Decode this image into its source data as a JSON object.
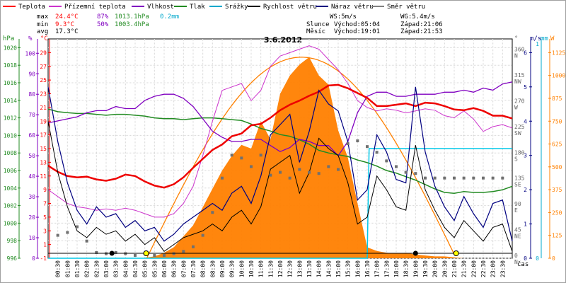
{
  "chart_data": {
    "type": "line",
    "title": "3.6.2012",
    "legend": [
      {
        "name": "Teplota",
        "color": "#ff0000"
      },
      {
        "name": "Přízemní teplota",
        "color": "#cc33cc"
      },
      {
        "name": "Vlhkost",
        "color": "#8000c0"
      },
      {
        "name": "Tlak",
        "color": "#228b22"
      },
      {
        "name": "Srážky",
        "color": "#00a8cc"
      },
      {
        "name": "Rychlost větru",
        "color": "#000000"
      },
      {
        "name": "Náraz větru",
        "color": "#000080"
      },
      {
        "name": "Směr větru",
        "color": "#808080"
      }
    ],
    "stats": {
      "max_label": "max",
      "min_label": "min",
      "avg_label": "avg",
      "max_temp": "24.4°C",
      "max_hum": "87%",
      "max_press": "1013.1hPa",
      "max_rain": "0.2mm",
      "min_temp": "9.3°C",
      "min_hum": "50%",
      "min_press": "1003.4hPa",
      "avg_temp": "17.3°C",
      "ws": "WS:5m/s",
      "wg": "WG:5.4m/s",
      "sun_label": "Slunce",
      "sun_rise": "Východ:05:04",
      "sun_set": "Západ:21:06",
      "moon_label": "Měsíc",
      "moon_rise": "Východ:19:01",
      "moon_set": "Západ:21:53"
    },
    "axes": {
      "hpa_label": "hPa",
      "pct_label": "%",
      "c_label": "°C",
      "dir_label": "°",
      "ms_label": "m/s",
      "mm_label": "mm",
      "w_label": "W",
      "hpa_ticks": [
        "1020",
        "1018",
        "1016",
        "1014",
        "1012",
        "1010",
        "1008",
        "1006",
        "1004",
        "1002",
        "1000",
        "998",
        "996"
      ],
      "pct_ticks": [
        "100",
        "90",
        "80",
        "70",
        "60",
        "50",
        "40",
        "30",
        "20",
        "10",
        "0"
      ],
      "c_ticks": [
        "29",
        "27",
        "25",
        "23",
        "21",
        "19",
        "17",
        "15",
        "13",
        "11",
        "9",
        "7",
        "5",
        "3",
        "1",
        "-1"
      ],
      "dir_ticks": [
        "360",
        "315",
        "270",
        "225",
        "180",
        "135",
        "90",
        "45",
        "0"
      ],
      "dir_names": [
        "N",
        "NW",
        "W",
        "SW",
        "S",
        "SE",
        "E",
        "NE",
        "N"
      ],
      "ms_ticks": [
        "6",
        "5",
        "4",
        "3",
        "2",
        "1",
        "0"
      ],
      "mm_ticks": [
        "1",
        "0"
      ],
      "w_ticks": [
        "1125",
        "1000",
        "875",
        "750",
        "625",
        "500",
        "375",
        "250",
        "125",
        "0"
      ],
      "x_ticks": [
        "00:30",
        "01:00",
        "01:30",
        "02:00",
        "02:30",
        "03:00",
        "03:30",
        "04:00",
        "04:30",
        "05:00",
        "05:30",
        "06:00",
        "06:30",
        "07:00",
        "07:30",
        "08:00",
        "08:30",
        "09:00",
        "09:30",
        "10:00",
        "10:30",
        "11:00",
        "11:30",
        "12:00",
        "12:30",
        "13:00",
        "13:30",
        "14:00",
        "14:30",
        "15:00",
        "15:30",
        "16:00",
        "16:30",
        "17:00",
        "17:30",
        "18:00",
        "18:30",
        "19:00",
        "19:30",
        "20:00",
        "20:30",
        "21:00",
        "21:30",
        "22:00",
        "22:30",
        "23:00",
        "23:30"
      ],
      "x_label": "čas",
      "x_range": [
        0,
        24
      ],
      "temp_range": [
        -1,
        31
      ],
      "hum_range": [
        0,
        107
      ],
      "press_range": [
        996,
        1021
      ],
      "dir_range": [
        0,
        383
      ],
      "wind_range": [
        0,
        6.4
      ],
      "rad_range": [
        0,
        1200
      ]
    },
    "series": [
      {
        "name": "Teplota",
        "unit": "°C",
        "x": [
          0,
          0.5,
          1,
          1.5,
          2,
          2.5,
          3,
          3.5,
          4,
          4.5,
          5,
          5.5,
          6,
          6.5,
          7,
          7.5,
          8,
          8.5,
          9,
          9.5,
          10,
          10.5,
          11,
          11.5,
          12,
          12.5,
          13,
          13.5,
          14,
          14.5,
          15,
          15.5,
          16,
          16.5,
          17,
          17.5,
          18,
          18.5,
          19,
          19.5,
          20,
          20.5,
          21,
          21.5,
          22,
          22.5,
          23,
          23.5,
          24
        ],
        "y": [
          12.5,
          11.6,
          11.0,
          10.8,
          10.9,
          10.5,
          10.3,
          10.6,
          11.2,
          11.0,
          10.2,
          9.6,
          9.3,
          9.8,
          10.8,
          12.2,
          13.5,
          14.8,
          15.6,
          16.8,
          17.2,
          18.4,
          18.6,
          19.5,
          20.6,
          21.4,
          22.0,
          22.7,
          23.3,
          24.2,
          24.3,
          23.8,
          23.1,
          22.4,
          21.2,
          21.2,
          21.4,
          21.6,
          21.2,
          21.7,
          21.6,
          21.2,
          20.7,
          20.6,
          20.9,
          20.5,
          19.8,
          19.8,
          19.4
        ]
      },
      {
        "name": "Přízemní teplota",
        "unit": "°C",
        "x": [
          0,
          0.5,
          1,
          1.5,
          2,
          2.5,
          3,
          3.5,
          4,
          4.5,
          5,
          5.5,
          6,
          6.5,
          7,
          7.5,
          8,
          8.5,
          9,
          9.5,
          10,
          10.5,
          11,
          11.5,
          12,
          12.5,
          13,
          13.5,
          14,
          14.5,
          15,
          15.5,
          16,
          16.5,
          17,
          17.5,
          18,
          18.5,
          19,
          19.5,
          20,
          20.5,
          21,
          21.5,
          22,
          22.5,
          23,
          23.5,
          24
        ],
        "y": [
          9.0,
          8.0,
          7.0,
          6.5,
          6.3,
          6.0,
          6.2,
          6.0,
          6.3,
          6.0,
          5.5,
          5.0,
          5.0,
          5.5,
          7.0,
          9.5,
          14.0,
          19.0,
          23.5,
          24.0,
          24.5,
          22.0,
          23.5,
          27.0,
          28.5,
          29.0,
          29.5,
          30.0,
          29.5,
          28.0,
          26.5,
          24.5,
          22.0,
          21.0,
          20.5,
          20.8,
          20.6,
          20.2,
          20.5,
          20.8,
          20.6,
          19.8,
          19.5,
          20.5,
          19.3,
          17.5,
          18.2,
          18.5,
          18.0
        ]
      },
      {
        "name": "Vlhkost",
        "unit": "%",
        "x": [
          0,
          0.5,
          1,
          1.5,
          2,
          2.5,
          3,
          3.5,
          4,
          4.5,
          5,
          5.5,
          6,
          6.5,
          7,
          7.5,
          8,
          8.5,
          9,
          9.5,
          10,
          10.5,
          11,
          11.5,
          12,
          12.5,
          13,
          13.5,
          14,
          14.5,
          15,
          15.5,
          16,
          16.5,
          17,
          17.5,
          18,
          18.5,
          19,
          19.5,
          20,
          20.5,
          21,
          21.5,
          22,
          22.5,
          23,
          23.5,
          24
        ],
        "y": [
          66,
          67,
          68,
          69,
          71,
          72,
          72,
          74,
          73,
          73,
          77,
          79,
          80,
          80,
          78,
          74,
          68,
          62,
          59,
          57,
          57,
          58,
          58,
          55,
          52,
          54,
          58,
          57,
          55,
          55,
          50,
          57,
          71,
          79,
          81,
          81,
          79,
          79,
          80,
          80,
          80,
          81,
          81,
          82,
          81,
          83,
          82,
          85,
          86
        ]
      },
      {
        "name": "Tlak",
        "unit": "hPa",
        "x": [
          0,
          0.5,
          1,
          1.5,
          2,
          2.5,
          3,
          3.5,
          4,
          4.5,
          5,
          5.5,
          6,
          6.5,
          7,
          7.5,
          8,
          8.5,
          9,
          9.5,
          10,
          10.5,
          11,
          11.5,
          12,
          12.5,
          13,
          13.5,
          14,
          14.5,
          15,
          15.5,
          16,
          16.5,
          17,
          17.5,
          18,
          18.5,
          19,
          19.5,
          20,
          20.5,
          21,
          21.5,
          22,
          22.5,
          23,
          23.5,
          24
        ],
        "y": [
          1013.0,
          1012.7,
          1012.6,
          1012.5,
          1012.5,
          1012.4,
          1012.3,
          1012.4,
          1012.4,
          1012.3,
          1012.2,
          1012.0,
          1011.9,
          1011.9,
          1011.8,
          1011.9,
          1012.0,
          1012.0,
          1011.9,
          1011.8,
          1011.7,
          1011.3,
          1010.8,
          1010.5,
          1010.1,
          1009.9,
          1009.5,
          1009.0,
          1008.3,
          1008.0,
          1007.8,
          1007.6,
          1007.2,
          1006.9,
          1006.5,
          1006.0,
          1005.7,
          1005.3,
          1004.9,
          1004.4,
          1003.9,
          1003.5,
          1003.4,
          1003.6,
          1003.5,
          1003.5,
          1003.6,
          1003.8,
          1004.2
        ]
      },
      {
        "name": "Rychlost větru",
        "unit": "m/s",
        "x": [
          0,
          0.5,
          1,
          1.5,
          2,
          2.5,
          3,
          3.5,
          4,
          4.5,
          5,
          5.5,
          6,
          6.5,
          7,
          7.5,
          8,
          8.5,
          9,
          9.5,
          10,
          10.5,
          11,
          11.5,
          12,
          12.5,
          13,
          13.5,
          14,
          14.5,
          15,
          15.5,
          16,
          16.5,
          17,
          17.5,
          18,
          18.5,
          19,
          19.5,
          20,
          20.5,
          21,
          21.5,
          22,
          22.5,
          23,
          23.5,
          24
        ],
        "y": [
          4.0,
          2.5,
          1.5,
          0.8,
          0.6,
          0.9,
          0.7,
          0.8,
          0.5,
          0.7,
          0.4,
          0.6,
          0.2,
          0.4,
          0.6,
          0.7,
          0.8,
          1.0,
          0.8,
          1.2,
          1.4,
          1.0,
          1.5,
          2.6,
          2.8,
          3.0,
          1.9,
          2.5,
          3.5,
          3.2,
          3.0,
          2.2,
          1.0,
          1.2,
          2.4,
          2.0,
          1.5,
          1.4,
          3.3,
          2.0,
          1.4,
          0.9,
          0.6,
          1.1,
          0.8,
          0.5,
          0.9,
          1.0,
          0.2
        ]
      },
      {
        "name": "Náraz větru",
        "unit": "m/s",
        "x": [
          0,
          0.5,
          1,
          1.5,
          2,
          2.5,
          3,
          3.5,
          4,
          4.5,
          5,
          5.5,
          6,
          6.5,
          7,
          7.5,
          8,
          8.5,
          9,
          9.5,
          10,
          10.5,
          11,
          11.5,
          12,
          12.5,
          13,
          13.5,
          14,
          14.5,
          15,
          15.5,
          16,
          16.5,
          17,
          17.5,
          18,
          18.5,
          19,
          19.5,
          20,
          20.5,
          21,
          21.5,
          22,
          22.5,
          23,
          23.5,
          24
        ],
        "y": [
          5.0,
          3.4,
          2.2,
          1.4,
          1.0,
          1.5,
          1.2,
          1.3,
          0.9,
          1.1,
          0.8,
          0.9,
          0.5,
          0.7,
          1.0,
          1.2,
          1.4,
          1.6,
          1.4,
          1.9,
          2.1,
          1.6,
          2.4,
          3.6,
          3.9,
          4.2,
          2.8,
          3.7,
          4.9,
          4.5,
          4.3,
          3.4,
          1.7,
          2.0,
          3.6,
          3.1,
          2.3,
          2.2,
          5.0,
          3.1,
          2.1,
          1.5,
          1.1,
          1.8,
          1.3,
          0.9,
          1.6,
          1.7,
          0.5
        ]
      },
      {
        "name": "Směr větru",
        "unit": "°",
        "x": [
          0.5,
          1,
          1.5,
          2,
          2.5,
          3,
          3.5,
          4,
          4.5,
          5,
          5.5,
          6,
          6.5,
          7,
          7.5,
          8,
          8.5,
          9,
          9.5,
          10,
          10.5,
          11,
          11.5,
          12,
          12.5,
          13,
          13.5,
          14,
          14.5,
          15,
          15.5,
          16,
          16.5,
          17,
          17.5,
          18,
          18.5,
          19,
          19.5,
          20,
          20.5,
          21,
          21.5,
          22,
          22.5,
          23,
          23.5
        ],
        "y": [
          40,
          45,
          55,
          30,
          10,
          8,
          10,
          8,
          5,
          8,
          5,
          5,
          8,
          12,
          20,
          40,
          80,
          140,
          180,
          175,
          160,
          180,
          145,
          150,
          140,
          155,
          150,
          148,
          160,
          155,
          200,
          205,
          195,
          185,
          170,
          160,
          150,
          148,
          140,
          140,
          140,
          140,
          140,
          140,
          140,
          140,
          140
        ]
      },
      {
        "name": "Sluneční záření",
        "unit": "W",
        "x": [
          0,
          4.8,
          5.5,
          6,
          6.5,
          7,
          7.5,
          8,
          8.5,
          9,
          9.5,
          10,
          10.5,
          11,
          11.5,
          12,
          12.5,
          13,
          13.5,
          14,
          14.5,
          15,
          15.5,
          16,
          16.5,
          17,
          17.5,
          18,
          18.5,
          19,
          19.5,
          20,
          20.5,
          21,
          21.5,
          22,
          24
        ],
        "y": [
          0,
          0,
          10,
          30,
          60,
          120,
          180,
          280,
          380,
          480,
          560,
          620,
          600,
          750,
          650,
          900,
          1000,
          1060,
          1100,
          1000,
          950,
          700,
          550,
          300,
          60,
          40,
          30,
          25,
          30,
          20,
          15,
          10,
          10,
          5,
          0,
          0,
          0
        ]
      },
      {
        "name": "Srážky",
        "unit": "mm",
        "x": [
          0,
          16.5,
          16.6,
          24
        ],
        "y": [
          0,
          0,
          0.2,
          0.2
        ]
      }
    ]
  }
}
